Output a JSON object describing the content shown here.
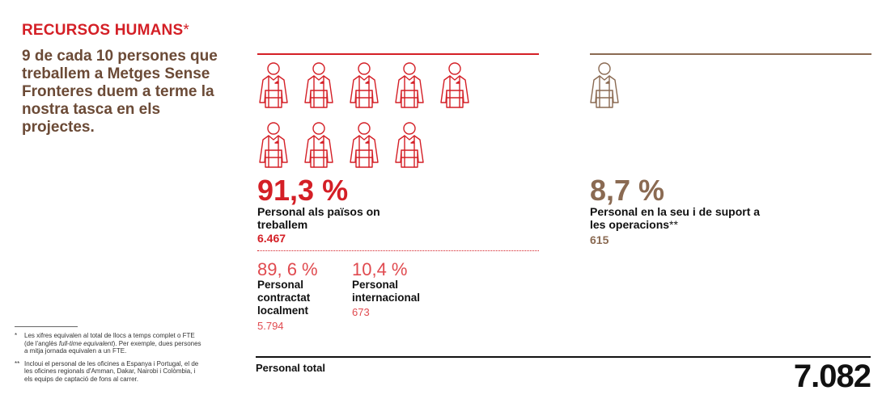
{
  "header": {
    "title": "RECURSOS HUMANS",
    "title_mark": "*"
  },
  "intro": "9 de cada 10 persones que treballem a Metges Sense Fronteres duem a terme la nostra tasca en els projectes.",
  "colors": {
    "red": "#d41f26",
    "light_red": "#e04a4f",
    "brown": "#8a6a52",
    "dark_brown": "#6b4a36"
  },
  "icons": {
    "name": "person-icon",
    "red_count": 9,
    "brown_count": 1
  },
  "field": {
    "percent": "91,3 %",
    "label": "Personal als països on treballem",
    "count": "6.467",
    "local": {
      "percent": "89, 6 %",
      "label": "Personal contractat localment",
      "count": "5.794"
    },
    "international": {
      "percent": "10,4 %",
      "label": "Personal internacional",
      "count": "673"
    }
  },
  "office": {
    "percent": "8,7 %",
    "label": "Personal en la seu i de suport a les operacions",
    "label_mark": "**",
    "count": "615"
  },
  "total": {
    "label": "Personal total",
    "value": "7.082"
  },
  "footnotes": [
    {
      "mark": "*",
      "text_before": "Les xifres equivalen al total de llocs a temps complet o FTE (de l'anglès ",
      "text_italic": "full-time equivalent",
      "text_after": "). Per exemple, dues persones a mitja jornada equivalen a un FTE."
    },
    {
      "mark": "**",
      "text": "Incloui el personal de les oficines a Espanya i Portugal, el de les oficines regionals d'Amman, Dakar, Nairobi i Colòmbia, i els equips de captació de fons al carrer."
    }
  ]
}
